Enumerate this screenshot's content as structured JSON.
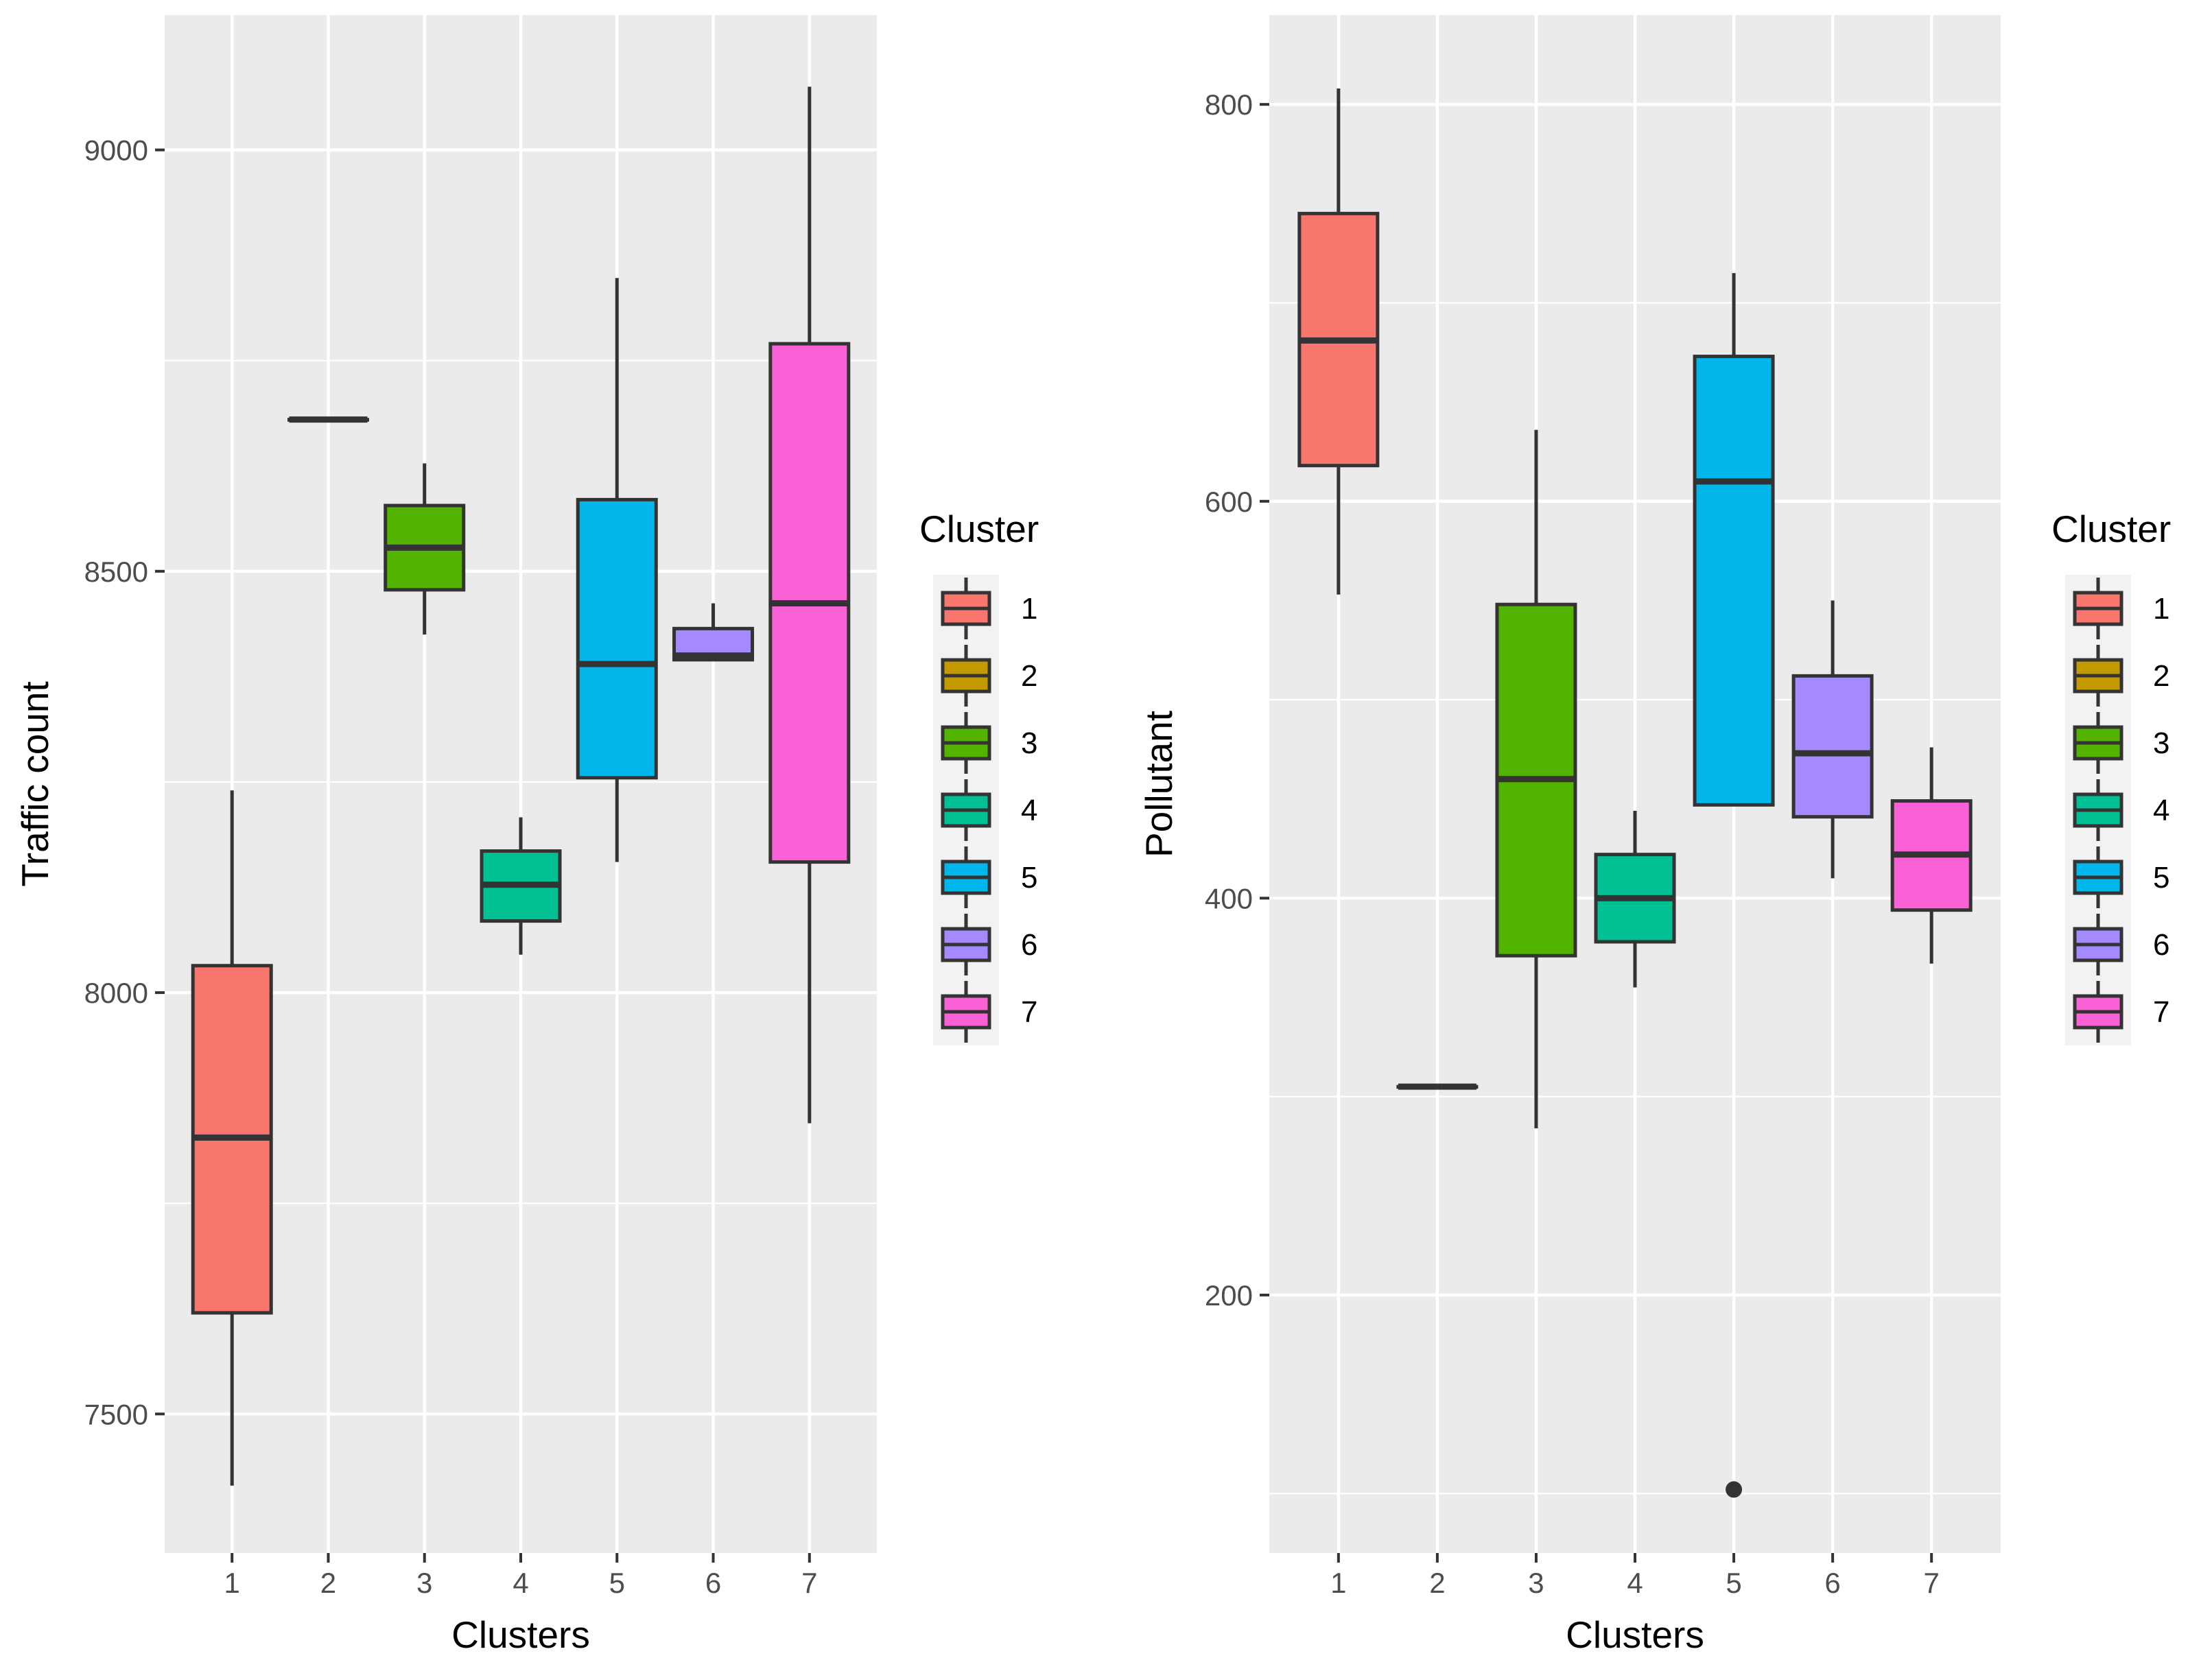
{
  "chart_data": [
    {
      "type": "boxplot",
      "xlabel": "Clusters",
      "ylabel": "Traffic count",
      "categories": [
        "1",
        "2",
        "3",
        "4",
        "5",
        "6",
        "7"
      ],
      "ylim": [
        7335,
        9160
      ],
      "yticks": [
        7500,
        8000,
        8500,
        9000
      ],
      "grid": true,
      "legend_position": "right",
      "legend_title": "Cluster",
      "series": [
        {
          "name": "1",
          "color": "#F8766D",
          "whisker_low": 7415,
          "q1": 7620,
          "median": 7828,
          "q3": 8032,
          "whisker_high": 8240
        },
        {
          "name": "2",
          "color": "#C49A00",
          "whisker_low": 8680,
          "q1": 8680,
          "median": 8680,
          "q3": 8680,
          "whisker_high": 8680
        },
        {
          "name": "3",
          "color": "#53B400",
          "whisker_low": 8425,
          "q1": 8478,
          "median": 8528,
          "q3": 8578,
          "whisker_high": 8628
        },
        {
          "name": "4",
          "color": "#00C094",
          "whisker_low": 8045,
          "q1": 8085,
          "median": 8128,
          "q3": 8168,
          "whisker_high": 8208
        },
        {
          "name": "5",
          "color": "#00B6EB",
          "whisker_low": 8155,
          "q1": 8255,
          "median": 8390,
          "q3": 8585,
          "whisker_high": 8848
        },
        {
          "name": "6",
          "color": "#A58AFF",
          "whisker_low": 8395,
          "q1": 8395,
          "median": 8400,
          "q3": 8432,
          "whisker_high": 8462
        },
        {
          "name": "7",
          "color": "#FB61D7",
          "whisker_low": 7845,
          "q1": 8155,
          "median": 8462,
          "q3": 8770,
          "whisker_high": 9075
        }
      ]
    },
    {
      "type": "boxplot",
      "xlabel": "Clusters",
      "ylabel": "Pollutant",
      "categories": [
        "1",
        "2",
        "3",
        "4",
        "5",
        "6",
        "7"
      ],
      "ylim": [
        70,
        845
      ],
      "yticks": [
        200,
        400,
        600,
        800
      ],
      "grid": true,
      "legend_position": "right",
      "legend_title": "Cluster",
      "series": [
        {
          "name": "1",
          "color": "#F8766D",
          "whisker_low": 553,
          "q1": 618,
          "median": 681,
          "q3": 745,
          "whisker_high": 808
        },
        {
          "name": "2",
          "color": "#C49A00",
          "whisker_low": 305,
          "q1": 305,
          "median": 305,
          "q3": 305,
          "whisker_high": 305
        },
        {
          "name": "3",
          "color": "#53B400",
          "whisker_low": 284,
          "q1": 371,
          "median": 460,
          "q3": 548,
          "whisker_high": 636
        },
        {
          "name": "4",
          "color": "#00C094",
          "whisker_low": 355,
          "q1": 378,
          "median": 400,
          "q3": 422,
          "whisker_high": 444
        },
        {
          "name": "5",
          "color": "#00B6EB",
          "whisker_low": 447,
          "q1": 447,
          "median": 610,
          "q3": 673,
          "whisker_high": 715,
          "outliers": [
            102
          ]
        },
        {
          "name": "6",
          "color": "#A58AFF",
          "whisker_low": 410,
          "q1": 441,
          "median": 473,
          "q3": 512,
          "whisker_high": 550
        },
        {
          "name": "7",
          "color": "#FB61D7",
          "whisker_low": 367,
          "q1": 394,
          "median": 422,
          "q3": 449,
          "whisker_high": 476
        }
      ]
    }
  ]
}
